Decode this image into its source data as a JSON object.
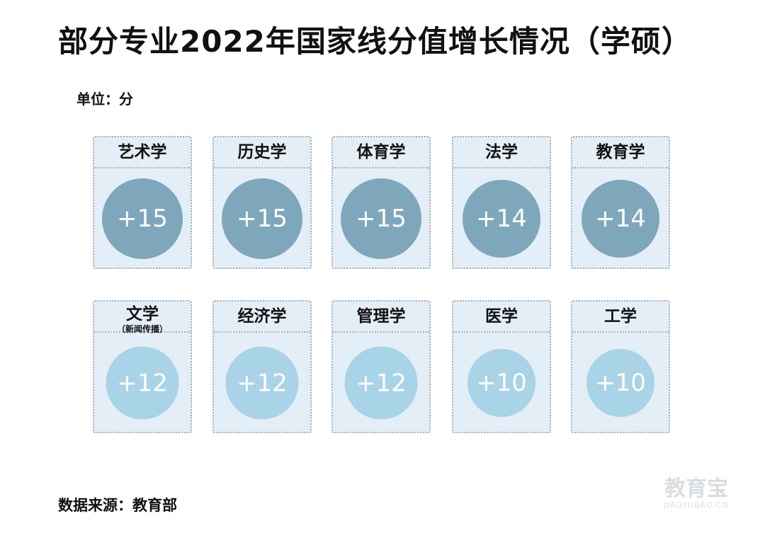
{
  "title": "部分专业2022年国家线分值增长情况（学硕）",
  "unit": "单位：分",
  "source": "数据来源：教育部",
  "watermark": {
    "main": "教育宝",
    "sub": "JIAOYUBAO.CN"
  },
  "colors": {
    "high": "#7fa7bc",
    "low": "#a9d3e6",
    "card_bg": "#e4eef6",
    "card_border": "#a9b1b8"
  },
  "chart_data": {
    "type": "table",
    "title": "部分专业2022年国家线分值增长情况（学硕）",
    "unit": "单位：分",
    "categories": [
      "艺术学",
      "历史学",
      "体育学",
      "法学",
      "教育学",
      "文学（新闻传播）",
      "经济学",
      "管理学",
      "医学",
      "工学"
    ],
    "items": [
      {
        "label": "艺术学",
        "sub": "",
        "value": 15,
        "display": "+15"
      },
      {
        "label": "历史学",
        "sub": "",
        "value": 15,
        "display": "+15"
      },
      {
        "label": "体育学",
        "sub": "",
        "value": 15,
        "display": "+15"
      },
      {
        "label": "法学",
        "sub": "",
        "value": 14,
        "display": "+14"
      },
      {
        "label": "教育学",
        "sub": "",
        "value": 14,
        "display": "+14"
      },
      {
        "label": "文学",
        "sub": "（新闻传播）",
        "value": 12,
        "display": "+12"
      },
      {
        "label": "经济学",
        "sub": "",
        "value": 12,
        "display": "+12"
      },
      {
        "label": "管理学",
        "sub": "",
        "value": 12,
        "display": "+12"
      },
      {
        "label": "医学",
        "sub": "",
        "value": 10,
        "display": "+10"
      },
      {
        "label": "工学",
        "sub": "",
        "value": 10,
        "display": "+10"
      }
    ]
  }
}
